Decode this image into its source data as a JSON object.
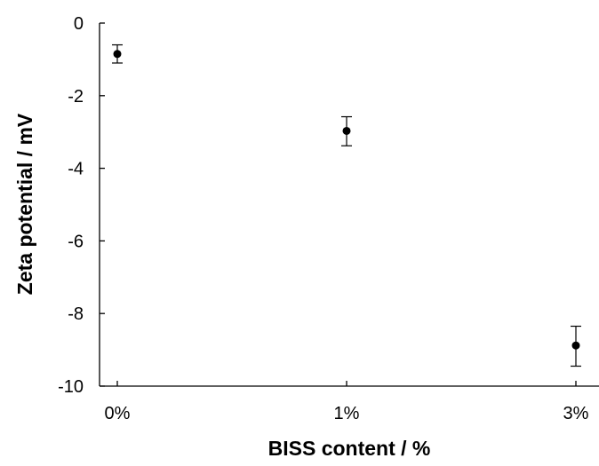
{
  "chart_data": {
    "type": "scatter",
    "title": "",
    "xlabel": "BISS content / %",
    "ylabel": "Zeta potential / mV",
    "categories": [
      "0%",
      "1%",
      "3%"
    ],
    "values": [
      -0.85,
      -2.97,
      -8.88
    ],
    "error_bars": [
      {
        "low": -1.1,
        "high": -0.6
      },
      {
        "low": -3.38,
        "high": -2.58
      },
      {
        "low": -9.45,
        "high": -8.35
      }
    ],
    "ylim": [
      -10,
      0
    ],
    "yticks": [
      0,
      -2,
      -4,
      -6,
      -8,
      -10
    ],
    "grid": false,
    "legend": "none",
    "marker_color": "#000000"
  }
}
